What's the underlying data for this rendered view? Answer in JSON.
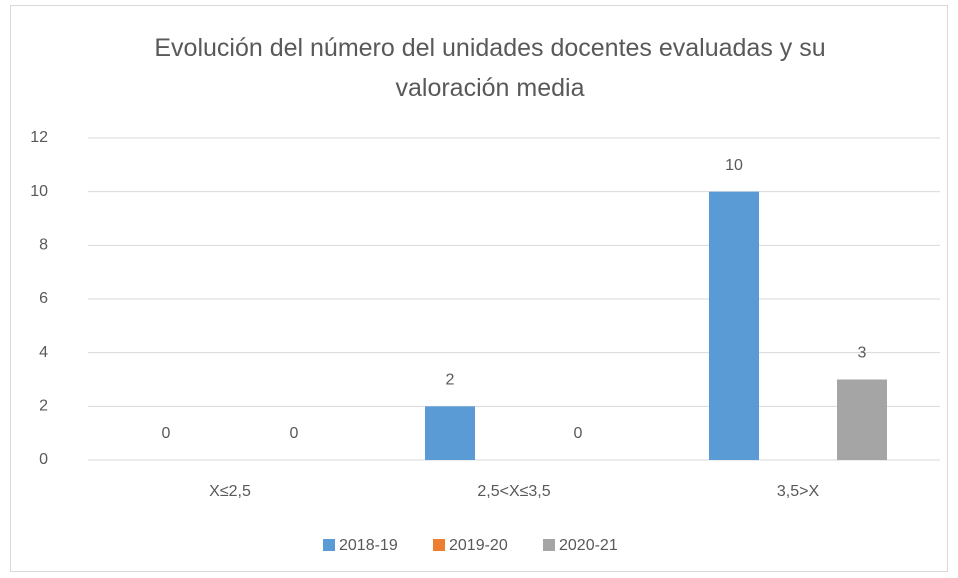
{
  "chart_data": {
    "type": "bar",
    "title": "Evolución del número del unidades docentes evaluadas y su valoración media",
    "categories": [
      "X≤2,5",
      "2,5<X≤3,5",
      "3,5>X"
    ],
    "series": [
      {
        "name": "2018-19",
        "color": "#5b9bd5",
        "values": [
          0,
          2,
          10
        ]
      },
      {
        "name": "2019-20",
        "color": "#ed7d31",
        "values": [
          null,
          null,
          null
        ]
      },
      {
        "name": "2020-21",
        "color": "#a5a5a5",
        "values": [
          0,
          0,
          3
        ]
      }
    ],
    "ylim": [
      0,
      12
    ],
    "yticks": [
      0,
      2,
      4,
      6,
      8,
      10,
      12
    ],
    "grid": true,
    "legend": "bottom"
  }
}
